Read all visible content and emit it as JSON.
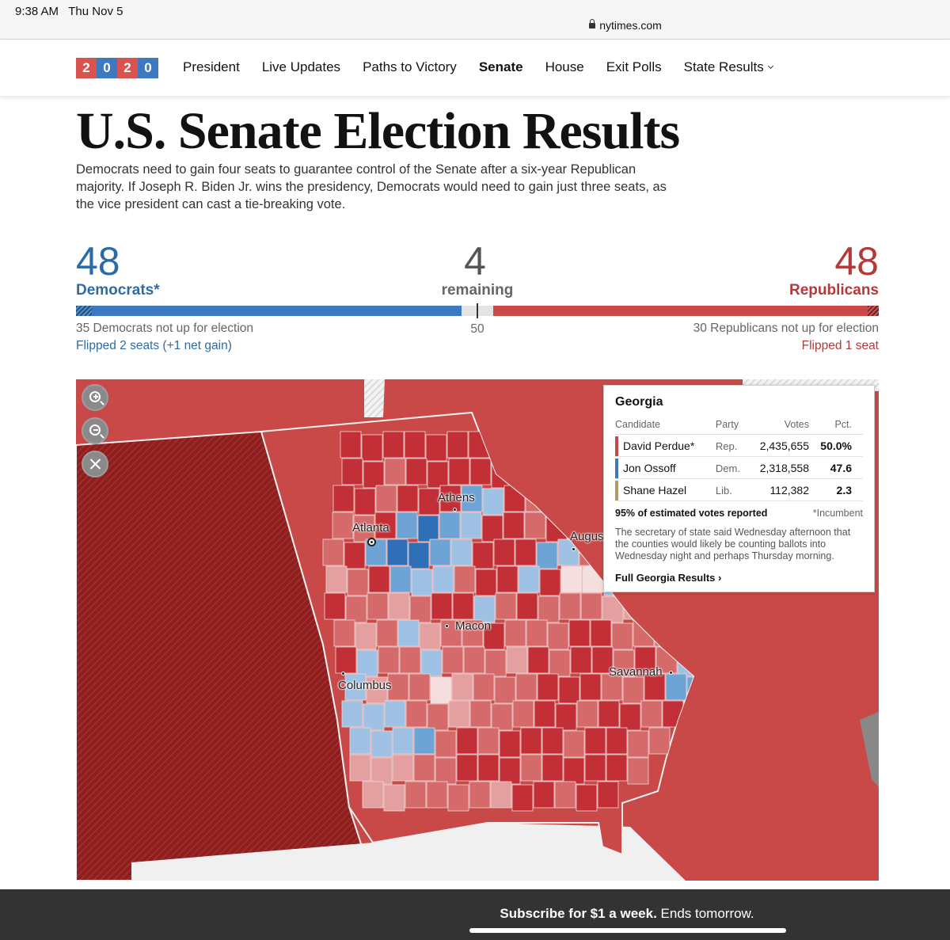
{
  "status_bar": {
    "time": "9:38 AM   Thu Nov 5",
    "url": "nytimes.com"
  },
  "nav": {
    "logo_digits": [
      "2",
      "0",
      "2",
      "0"
    ],
    "logo_colors": [
      "#d9534f",
      "#3c79c1",
      "#d9534f",
      "#3c79c1"
    ],
    "items": [
      {
        "label": "President",
        "active": false
      },
      {
        "label": "Live Updates",
        "active": false
      },
      {
        "label": "Paths to Victory",
        "active": false
      },
      {
        "label": "Senate",
        "active": true
      },
      {
        "label": "House",
        "active": false
      },
      {
        "label": "Exit Polls",
        "active": false
      },
      {
        "label": "State Results",
        "active": false,
        "dropdown": true
      }
    ]
  },
  "page": {
    "title": "U.S. Senate Election Results",
    "lede": "Democrats need to gain four seats to guarantee control of the Senate after a six-year Republican majority. If Joseph R. Biden Jr. wins the presidency, Democrats would need to gain just three seats, as the vice president can cast a tie-breaking vote."
  },
  "tally": {
    "dem": {
      "count": "48",
      "label": "Democrats*",
      "not_up": "35 Democrats not up for election",
      "flipped": "Flipped 2 seats (+1 net gain)",
      "seats": 48,
      "not_up_seats": 35
    },
    "remaining": {
      "count": "4",
      "label": "remaining",
      "seats": 4
    },
    "rep": {
      "count": "48",
      "label": "Republicans",
      "not_up": "30 Republicans not up for election",
      "flipped": "Flipped 1 seat",
      "seats": 48,
      "not_up_seats": 30
    },
    "majority_marker": "50",
    "total_seats": 100
  },
  "colors": {
    "dem": "#3c79c1",
    "rep": "#c94949",
    "remaining": "#e3e3e3",
    "lib": "#b39a6b"
  },
  "map": {
    "state": "Georgia",
    "cities": [
      "Atlanta",
      "Athens",
      "Augusta",
      "Macon",
      "Columbus",
      "Savannah"
    ]
  },
  "tooltip": {
    "state": "Georgia",
    "headers": {
      "candidate": "Candidate",
      "party": "Party",
      "votes": "Votes",
      "pct": "Pct."
    },
    "rows": [
      {
        "candidate": "David Perdue*",
        "party": "Rep.",
        "votes": "2,435,655",
        "pct": "50.0%",
        "color": "#c94949"
      },
      {
        "candidate": "Jon Ossoff",
        "party": "Dem.",
        "votes": "2,318,558",
        "pct": "47.6",
        "color": "#3c79c1"
      },
      {
        "candidate": "Shane Hazel",
        "party": "Lib.",
        "votes": "112,382",
        "pct": "2.3",
        "color": "#b39a6b"
      }
    ],
    "reported": "95% of estimated votes reported",
    "incumbent_note": "*Incumbent",
    "note": "The secretary of state said Wednesday afternoon that the counties would likely be counting ballots into Wednesday night and perhaps Thursday morning.",
    "link": "Full Georgia Results ›"
  },
  "subscribe": {
    "bold": "Subscribe for $1 a week.",
    "rest": " Ends tomorrow."
  }
}
